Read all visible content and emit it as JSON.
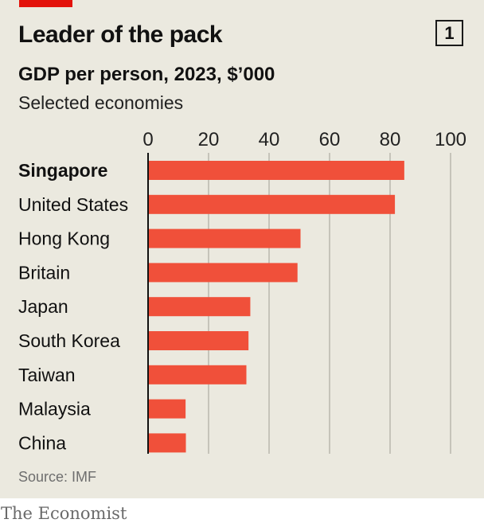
{
  "header": {
    "title": "Leader of the pack",
    "chart_number": "1",
    "subtitle": "GDP per person, 2023, $’000",
    "subsubtitle": "Selected economies"
  },
  "footer": {
    "source": "Source: IMF",
    "brand": "The Economist"
  },
  "colors": {
    "background": "#ebe9df",
    "bar": "#f0503a",
    "accent": "#e3120b",
    "grid": "#c6c4ba"
  },
  "chart_data": {
    "type": "bar",
    "orientation": "horizontal",
    "categories": [
      "Singapore",
      "United States",
      "Hong Kong",
      "Britain",
      "Japan",
      "South Korea",
      "Taiwan",
      "Malaysia",
      "China"
    ],
    "highlight": "Singapore",
    "values": [
      84.7,
      81.6,
      50.4,
      49.4,
      33.8,
      33.2,
      32.5,
      12.4,
      12.5
    ],
    "xlim": [
      0,
      100
    ],
    "xticks": [
      "0",
      "20",
      "40",
      "60",
      "80",
      "100"
    ],
    "grid": true
  }
}
